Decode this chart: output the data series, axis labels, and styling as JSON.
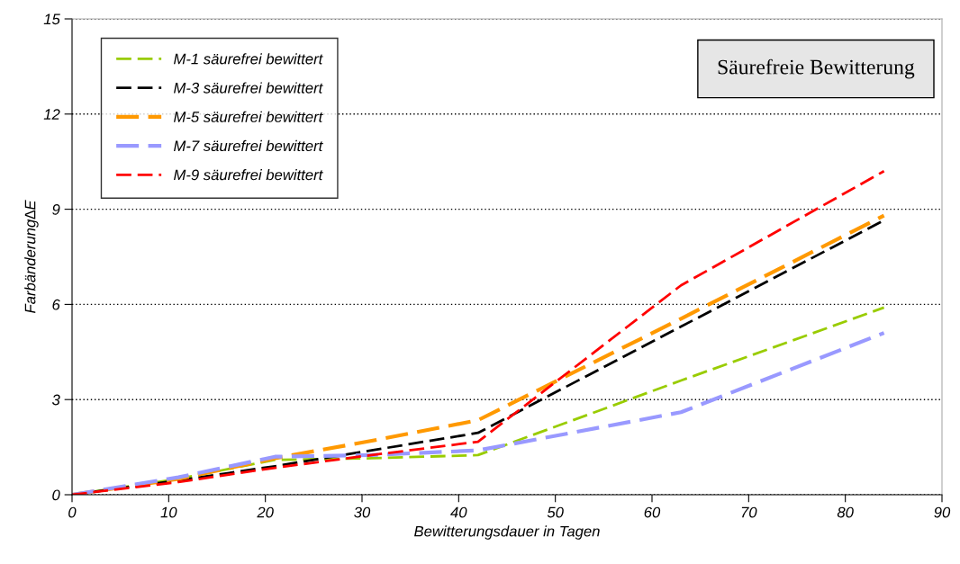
{
  "chart_data": {
    "type": "line",
    "title": "Säurefreie Bewitterung",
    "xlabel": "Bewitterungsdauer in Tagen",
    "ylabel": "Farbänderung∆E",
    "x": [
      0,
      11,
      21,
      31,
      42,
      63,
      84
    ],
    "xlim": [
      0,
      90
    ],
    "xticks": [
      0,
      10,
      20,
      30,
      40,
      50,
      60,
      70,
      80,
      90
    ],
    "ylim": [
      0,
      15
    ],
    "yticks": [
      0,
      3,
      6,
      9,
      12,
      15
    ],
    "grid": "y",
    "legend": "top left",
    "line_style": "dashed",
    "marker": "none",
    "series": [
      {
        "name": "M-1 säurefrei bewittert",
        "color": "#99cc00",
        "values": [
          0,
          0.5,
          1.1,
          1.15,
          1.25,
          3.6,
          5.9
        ]
      },
      {
        "name": "M-3 säurefrei bewittert",
        "color": "#000000",
        "values": [
          0,
          0.45,
          0.9,
          1.4,
          1.95,
          5.3,
          8.65
        ]
      },
      {
        "name": "M-5 säurefrei bewittert",
        "color": "#ff9900",
        "values": [
          0,
          0.5,
          1.15,
          1.7,
          2.35,
          5.55,
          8.8
        ]
      },
      {
        "name": "M-7 säurefrei bewittert",
        "color": "#9999ff",
        "values": [
          0,
          0.55,
          1.2,
          1.25,
          1.4,
          2.6,
          5.1
        ]
      },
      {
        "name": "M-9 säurefrei bewittert",
        "color": "#ff0000",
        "values": [
          0,
          0.4,
          0.85,
          1.25,
          1.67,
          6.6,
          10.2
        ]
      }
    ]
  }
}
